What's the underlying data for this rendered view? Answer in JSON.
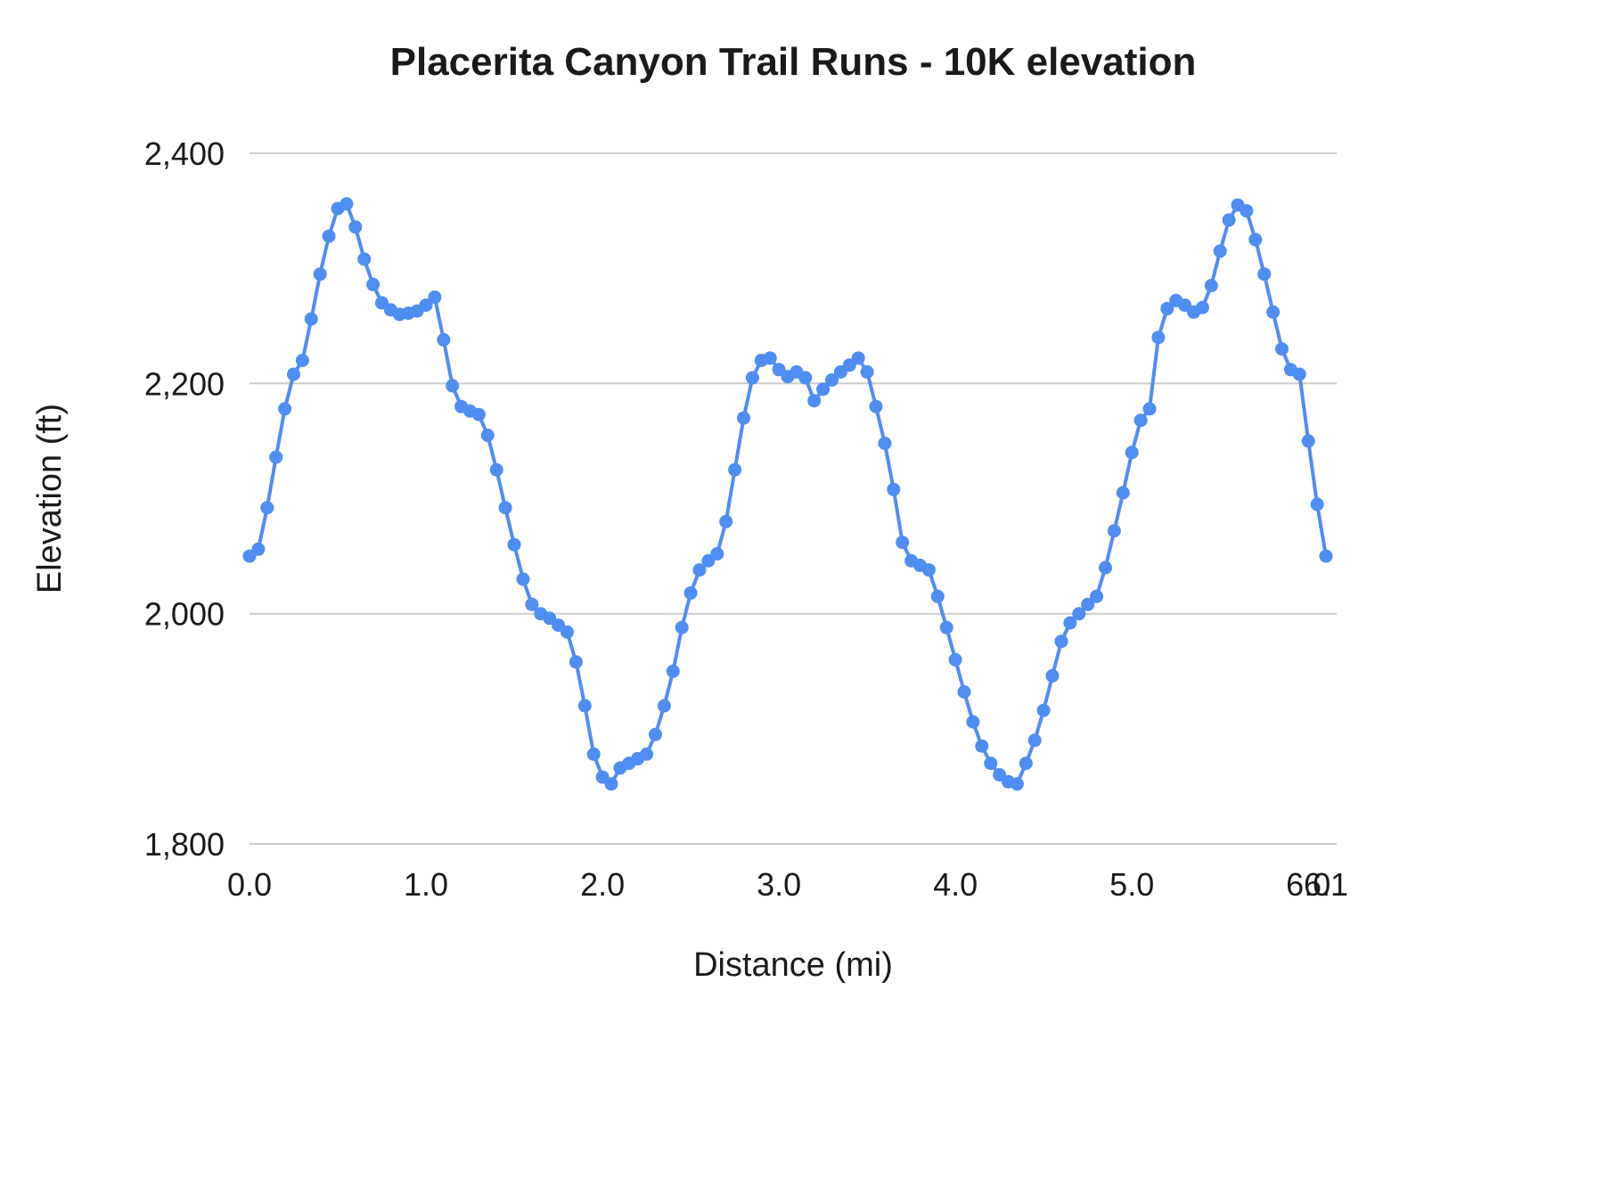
{
  "chart": {
    "title": "Placerita Canyon Trail Runs - 10K elevation",
    "x_axis_title": "Distance (mi)",
    "y_axis_title": "Elevation (ft)",
    "accent_color": "#4e8df2",
    "grid_color": "#cccccc",
    "title_color": "#1a1a1a",
    "tick_color": "#2b2b2b",
    "background_color": "#ffffff"
  },
  "chart_data": {
    "type": "line",
    "title": "Placerita Canyon Trail Runs - 10K elevation",
    "xlabel": "Distance (mi)",
    "ylabel": "Elevation (ft)",
    "xlim": [
      0,
      6.1
    ],
    "ylim": [
      1800,
      2400
    ],
    "grid": true,
    "legend": "none",
    "marker": "circle",
    "x_ticks": [
      0,
      1,
      2,
      3,
      4,
      5,
      6,
      6.1
    ],
    "x_tick_labels": [
      "0.0",
      "1.0",
      "2.0",
      "3.0",
      "4.0",
      "5.0",
      "6.0",
      "6.1"
    ],
    "y_ticks": [
      1800,
      2000,
      2200,
      2400
    ],
    "y_tick_labels": [
      "1,800",
      "2,000",
      "2,200",
      "2,400"
    ],
    "series": [
      {
        "name": "Elevation (ft)",
        "x": [
          0,
          0.05,
          0.1,
          0.15,
          0.2,
          0.25,
          0.3,
          0.35,
          0.4,
          0.45,
          0.5,
          0.55,
          0.6,
          0.65,
          0.7,
          0.75,
          0.8,
          0.85,
          0.9,
          0.95,
          1,
          1.05,
          1.1,
          1.15,
          1.2,
          1.25,
          1.3,
          1.35,
          1.4,
          1.45,
          1.5,
          1.55,
          1.6,
          1.65,
          1.7,
          1.75,
          1.8,
          1.85,
          1.9,
          1.95,
          2,
          2.05,
          2.1,
          2.15,
          2.2,
          2.25,
          2.3,
          2.35,
          2.4,
          2.45,
          2.5,
          2.55,
          2.6,
          2.65,
          2.7,
          2.75,
          2.8,
          2.85,
          2.9,
          2.95,
          3,
          3.05,
          3.1,
          3.15,
          3.2,
          3.25,
          3.3,
          3.35,
          3.4,
          3.45,
          3.5,
          3.55,
          3.6,
          3.65,
          3.7,
          3.75,
          3.8,
          3.85,
          3.9,
          3.95,
          4,
          4.05,
          4.1,
          4.15,
          4.2,
          4.25,
          4.3,
          4.35,
          4.4,
          4.45,
          4.5,
          4.55,
          4.6,
          4.65,
          4.7,
          4.75,
          4.8,
          4.85,
          4.9,
          4.95,
          5,
          5.05,
          5.1,
          5.15,
          5.2,
          5.25,
          5.3,
          5.35,
          5.4,
          5.45,
          5.5,
          5.55,
          5.6,
          5.65,
          5.7,
          5.75,
          5.8,
          5.85,
          5.9,
          5.95,
          6,
          6.05,
          6.1
        ],
        "y": [
          2050,
          2056,
          2092,
          2136,
          2178,
          2208,
          2220,
          2256,
          2295,
          2328,
          2352,
          2356,
          2336,
          2308,
          2286,
          2270,
          2264,
          2260,
          2261,
          2263,
          2268,
          2275,
          2238,
          2198,
          2180,
          2176,
          2173,
          2155,
          2125,
          2092,
          2060,
          2030,
          2008,
          2000,
          1996,
          1990,
          1984,
          1958,
          1920,
          1878,
          1858,
          1852,
          1866,
          1870,
          1874,
          1878,
          1895,
          1920,
          1950,
          1988,
          2018,
          2038,
          2046,
          2052,
          2080,
          2125,
          2170,
          2205,
          2220,
          2222,
          2212,
          2206,
          2210,
          2205,
          2185,
          2195,
          2203,
          2210,
          2216,
          2222,
          2210,
          2180,
          2148,
          2108,
          2062,
          2046,
          2042,
          2038,
          2015,
          1988,
          1960,
          1932,
          1906,
          1885,
          1870,
          1860,
          1854,
          1852,
          1870,
          1890,
          1916,
          1946,
          1976,
          1992,
          2000,
          2008,
          2015,
          2040,
          2072,
          2105,
          2140,
          2168,
          2178,
          2240,
          2265,
          2272,
          2268,
          2262,
          2266,
          2285,
          2315,
          2342,
          2355,
          2350,
          2325,
          2295,
          2262,
          2230,
          2212,
          2208,
          2150,
          2095,
          2050
        ]
      }
    ]
  }
}
